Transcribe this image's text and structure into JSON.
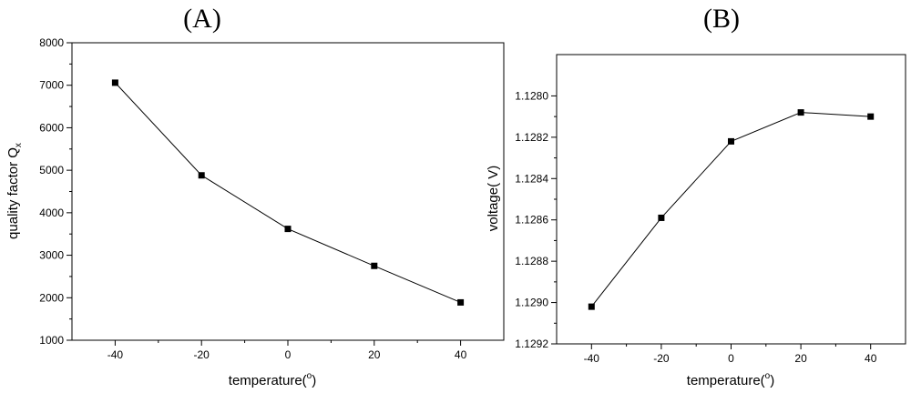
{
  "chart_data": [
    {
      "type": "line",
      "panel_label": "(A)",
      "xlabel_main": "temperature(",
      "xlabel_sup": "o",
      "xlabel_tail": ")",
      "ylabel_main": "quality factor Q",
      "ylabel_sub": "x",
      "x": [
        -40,
        -20,
        0,
        20,
        40
      ],
      "y": [
        7060,
        4880,
        3620,
        2750,
        1890
      ],
      "xlim": [
        -50,
        50
      ],
      "ylim": [
        1000,
        8000
      ],
      "y_inverted": false,
      "xticks": [
        -40,
        -20,
        0,
        20,
        40
      ],
      "xtick_labels": [
        "-40",
        "-20",
        "0",
        "20",
        "40"
      ],
      "yticks": [
        1000,
        2000,
        3000,
        4000,
        5000,
        6000,
        7000,
        8000
      ],
      "ytick_labels": [
        "1000",
        "2000",
        "3000",
        "4000",
        "5000",
        "6000",
        "7000",
        "8000"
      ],
      "grid": false,
      "marker": "square",
      "color": "#000000"
    },
    {
      "type": "line",
      "panel_label": "(B)",
      "xlabel_main": "temperature(",
      "xlabel_sup": "o",
      "xlabel_tail": ")",
      "ylabel_main": "voltage(   V)",
      "ylabel_sub": "",
      "x": [
        -40,
        -20,
        0,
        20,
        40
      ],
      "y": [
        1.12902,
        1.12859,
        1.12822,
        1.12808,
        1.1281
      ],
      "xlim": [
        -50,
        50
      ],
      "ylim": [
        1.1278,
        1.1292
      ],
      "y_inverted": true,
      "xticks": [
        -40,
        -20,
        0,
        20,
        40
      ],
      "xtick_labels": [
        "-40",
        "-20",
        "0",
        "20",
        "40"
      ],
      "yticks": [
        1.128,
        1.1282,
        1.1284,
        1.1286,
        1.1288,
        1.129,
        1.1292
      ],
      "ytick_labels": [
        "1.1280",
        "1.1282",
        "1.1284",
        "1.1286",
        "1.1288",
        "1.1290",
        "1.1292"
      ],
      "grid": false,
      "marker": "square",
      "color": "#000000"
    }
  ]
}
